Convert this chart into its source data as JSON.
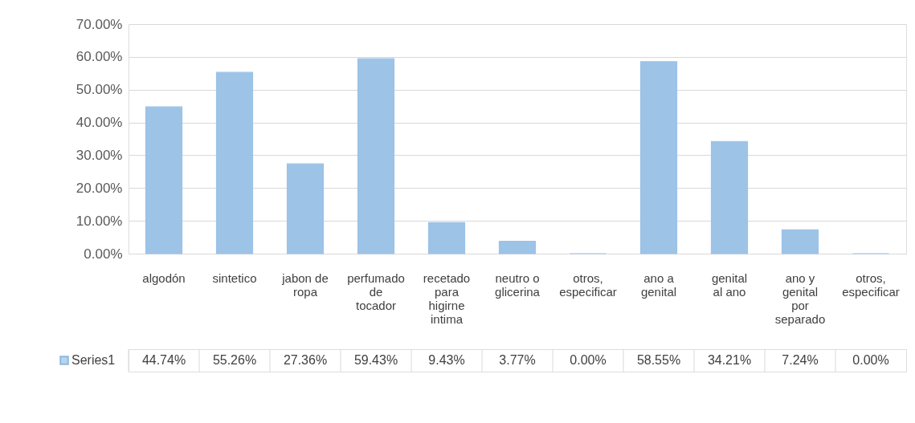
{
  "chart_data": {
    "type": "bar",
    "categories": [
      "algodón",
      "sintetico",
      "jabon de ropa",
      "perfumado de tocador",
      "recetado para higirne intima",
      "neutro o glicerina",
      "otros, especificar",
      "ano a genital",
      "genital al ano",
      "ano y genital por separado",
      "otros, especificar"
    ],
    "series": [
      {
        "name": "Series1",
        "color": "#9dc3e6",
        "values": [
          44.74,
          55.26,
          27.36,
          59.43,
          9.43,
          3.77,
          0.0,
          58.55,
          34.21,
          7.24,
          0.0
        ],
        "value_labels": [
          "44.74%",
          "55.26%",
          "27.36%",
          "59.43%",
          "9.43%",
          "3.77%",
          "0.00%",
          "58.55%",
          "34.21%",
          "7.24%",
          "0.00%"
        ]
      }
    ],
    "ylim": [
      0,
      70
    ],
    "yticks": [
      {
        "value": 0,
        "label": "0.00%"
      },
      {
        "value": 10,
        "label": "10.00%"
      },
      {
        "value": 20,
        "label": "20.00%"
      },
      {
        "value": 30,
        "label": "30.00%"
      },
      {
        "value": 40,
        "label": "40.00%"
      },
      {
        "value": 50,
        "label": "50.00%"
      },
      {
        "value": 60,
        "label": "60.00%"
      },
      {
        "value": 70,
        "label": "70.00%"
      }
    ],
    "grid": "y"
  }
}
